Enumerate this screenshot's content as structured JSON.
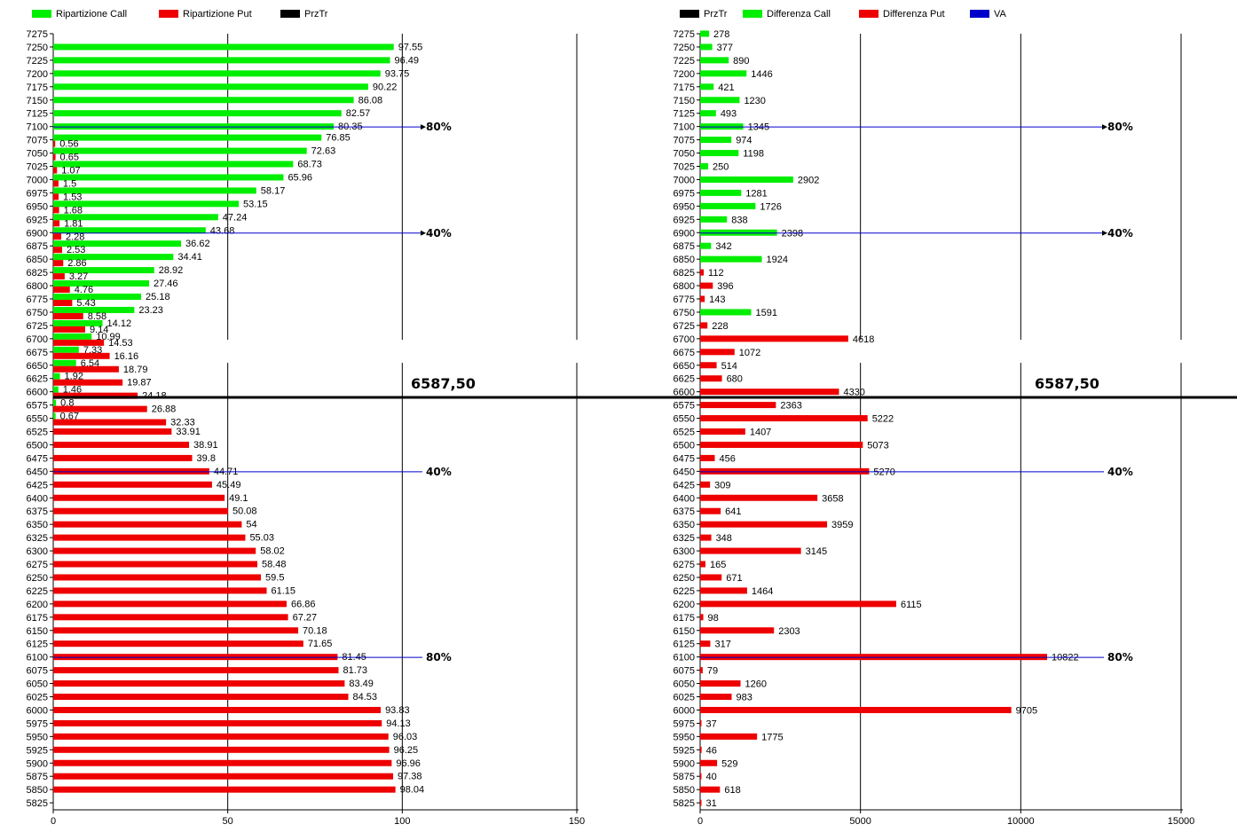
{
  "price_levels": [
    "7275",
    "7250",
    "7225",
    "7200",
    "7175",
    "7150",
    "7125",
    "7100",
    "7075",
    "7050",
    "7025",
    "7000",
    "6975",
    "6950",
    "6925",
    "6900",
    "6875",
    "6850",
    "6825",
    "6800",
    "6775",
    "6750",
    "6725",
    "6700",
    "6675",
    "6650",
    "6625",
    "6600",
    "6575",
    "6550",
    "6525",
    "6500",
    "6475",
    "6450",
    "6425",
    "6400",
    "6375",
    "6350",
    "6325",
    "6300",
    "6275",
    "6250",
    "6225",
    "6200",
    "6175",
    "6150",
    "6125",
    "6100",
    "6075",
    "6050",
    "6025",
    "6000",
    "5975",
    "5950",
    "5925",
    "5900",
    "5875",
    "5850",
    "5825"
  ],
  "current_price": "6587,50",
  "colors": {
    "call": "#00ee00",
    "put": "#ee0000",
    "przTr": "#000000",
    "va": "#0000cc"
  },
  "chart_data": [
    {
      "type": "bar",
      "orientation": "horizontal",
      "legend": [
        "Ripartizione Call",
        "Ripartizione Put",
        "PrzTr"
      ],
      "legend_position": "top-left",
      "xlim": [
        0,
        150
      ],
      "xticks": [
        "0",
        "50",
        "100",
        "150"
      ],
      "series": [
        {
          "name": "Ripartizione Call",
          "color": "#00ee00",
          "values": [
            null,
            97.55,
            96.49,
            93.75,
            90.22,
            86.08,
            82.57,
            80.35,
            76.85,
            72.63,
            68.73,
            65.96,
            58.17,
            53.15,
            47.24,
            43.68,
            36.62,
            34.41,
            28.92,
            27.46,
            25.18,
            23.23,
            14.12,
            10.99,
            7.33,
            6.54,
            1.92,
            1.46,
            0.8,
            0.67,
            null,
            null,
            null,
            null,
            null,
            null,
            null,
            null,
            null,
            null,
            null,
            null,
            null,
            null,
            null,
            null,
            null,
            null,
            null,
            null,
            null,
            null,
            null,
            null,
            null,
            null,
            null,
            null,
            null
          ],
          "labels": [
            "",
            "97.55",
            "96.49",
            "93.75",
            "90.22",
            "86.08",
            "82.57",
            "80.35",
            "76.85",
            "72.63",
            "68.73",
            "65.96",
            "58.17",
            "53.15",
            "47.24",
            "43.68",
            "36.62",
            "34.41",
            "28.92",
            "27.46",
            "25.18",
            "23.23",
            "14.12",
            "10.99",
            "7.33",
            "6.54",
            "1.92",
            "1.46",
            "0.8",
            "0.67",
            "",
            "",
            "",
            "",
            "",
            "",
            "",
            "",
            "",
            "",
            "",
            "",
            "",
            "",
            "",
            "",
            "",
            "",
            "",
            "",
            "",
            "",
            "",
            "",
            "",
            "",
            "",
            "",
            ""
          ]
        },
        {
          "name": "Ripartizione Put",
          "color": "#ee0000",
          "values": [
            null,
            null,
            null,
            null,
            null,
            null,
            null,
            null,
            0.56,
            0.65,
            1.07,
            1.5,
            1.53,
            1.68,
            1.81,
            2.28,
            2.53,
            2.86,
            3.27,
            4.76,
            5.43,
            8.58,
            9.14,
            14.53,
            16.16,
            18.79,
            19.87,
            24.18,
            26.88,
            32.33,
            33.91,
            38.91,
            39.8,
            44.71,
            45.49,
            49.1,
            50.08,
            54,
            55.03,
            58.02,
            58.48,
            59.5,
            61.15,
            66.86,
            67.27,
            70.18,
            71.65,
            81.45,
            81.73,
            83.49,
            84.53,
            93.83,
            94.13,
            96.03,
            96.25,
            96.96,
            97.38,
            98.04,
            null
          ],
          "labels": [
            "",
            "",
            "",
            "",
            "",
            "",
            "",
            "",
            "0.56",
            "0.65",
            "1.07",
            "1.5",
            "1.53",
            "1.68",
            "1.81",
            "2.28",
            "2.53",
            "2.86",
            "3.27",
            "4.76",
            "5.43",
            "8.58",
            "9.14",
            "14.53",
            "16.16",
            "18.79",
            "19.87",
            "24.18",
            "26.88",
            "32.33",
            "33.91",
            "38.91",
            "39.8",
            "44.71",
            "45.49",
            "49.1",
            "50.08",
            "54",
            "55.03",
            "58.02",
            "58.48",
            "59.5",
            "61.15",
            "66.86",
            "67.27",
            "70.18",
            "71.65",
            "81.45",
            "81.73",
            "83.49",
            "84.53",
            "93.83",
            "94.13",
            "96.03",
            "96.25",
            "96.96",
            "97.38",
            "98.04",
            ""
          ]
        }
      ],
      "annotations": [
        {
          "price": "7100",
          "text": "80%",
          "arrow": true
        },
        {
          "price": "6900",
          "text": "40%",
          "arrow": true
        },
        {
          "price": "6450",
          "text": "40%",
          "arrow": false
        },
        {
          "price": "6100",
          "text": "80%",
          "arrow": false
        }
      ]
    },
    {
      "type": "bar",
      "orientation": "horizontal",
      "legend": [
        "PrzTr",
        "Differenza Call",
        "Differenza Put",
        "VA"
      ],
      "legend_position": "top-left",
      "xlim": [
        0,
        16000
      ],
      "xticks": [
        "0",
        "5000",
        "10000",
        "15000"
      ],
      "values": [
        278,
        377,
        890,
        1446,
        421,
        1230,
        493,
        1345,
        974,
        1198,
        250,
        2902,
        1281,
        1726,
        838,
        2398,
        342,
        1924,
        112,
        396,
        143,
        1591,
        228,
        4618,
        1072,
        514,
        680,
        4330,
        2363,
        5222,
        1407,
        5073,
        456,
        5270,
        309,
        3658,
        641,
        3959,
        348,
        3145,
        165,
        671,
        1464,
        6115,
        98,
        2303,
        317,
        10822,
        79,
        1260,
        983,
        9705,
        37,
        1775,
        46,
        529,
        40,
        618,
        31
      ],
      "labels": [
        "278",
        "377",
        "890",
        "1446",
        "421",
        "1230",
        "493",
        "1345",
        "974",
        "1198",
        "250",
        "2902",
        "1281",
        "1726",
        "838",
        "2398",
        "342",
        "1924",
        "112",
        "396",
        "143",
        "1591",
        "228",
        "4618",
        "1072",
        "514",
        "680",
        "4330",
        "2363",
        "5222",
        "1407",
        "5073",
        "456",
        "5270",
        "309",
        "3658",
        "641",
        "3959",
        "348",
        "3145",
        "165",
        "671",
        "1464",
        "6115",
        "98",
        "2303",
        "317",
        "10822",
        "79",
        "1260",
        "983",
        "9705",
        "37",
        "1775",
        "46",
        "529",
        "40",
        "618",
        "31"
      ],
      "side": [
        "call",
        "call",
        "call",
        "call",
        "call",
        "call",
        "call",
        "call",
        "call",
        "call",
        "call",
        "call",
        "call",
        "call",
        "call",
        "call",
        "call",
        "call",
        "put",
        "put",
        "put",
        "call",
        "put",
        "put",
        "put",
        "put",
        "put",
        "put",
        "put",
        "put",
        "put",
        "put",
        "put",
        "put",
        "put",
        "put",
        "put",
        "put",
        "put",
        "put",
        "put",
        "put",
        "put",
        "put",
        "put",
        "put",
        "put",
        "put",
        "put",
        "put",
        "put",
        "put",
        "put",
        "put",
        "put",
        "put",
        "put",
        "put",
        "put"
      ],
      "annotations": [
        {
          "price": "7100",
          "text": "80%",
          "arrow": true
        },
        {
          "price": "6900",
          "text": "40%",
          "arrow": true
        },
        {
          "price": "6450",
          "text": "40%",
          "arrow": false
        },
        {
          "price": "6100",
          "text": "80%",
          "arrow": false
        }
      ]
    }
  ]
}
